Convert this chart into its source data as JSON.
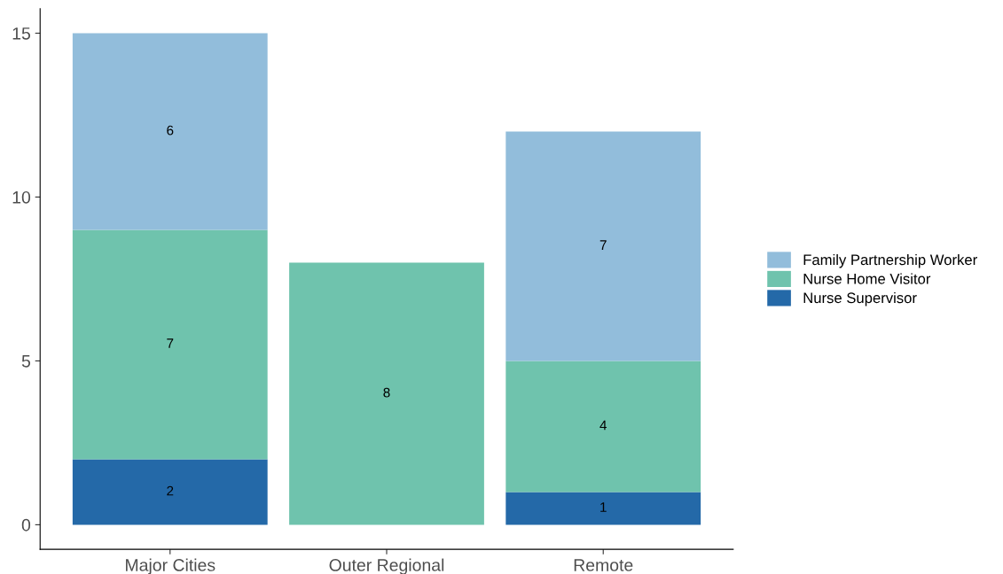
{
  "chart_data": {
    "type": "bar",
    "stacked": true,
    "categories": [
      "Major Cities",
      "Outer Regional",
      "Remote"
    ],
    "series": [
      {
        "name": "Nurse Supervisor",
        "color": "#2469a8",
        "values": [
          2,
          null,
          1
        ]
      },
      {
        "name": "Nurse Home Visitor",
        "color": "#6fc3ad",
        "values": [
          7,
          8,
          4
        ]
      },
      {
        "name": "Family Partnership Worker",
        "color": "#92bddb",
        "values": [
          6,
          null,
          7
        ]
      }
    ],
    "ylim": [
      -0.75,
      15.75
    ],
    "yticks": [
      0,
      5,
      10,
      15
    ],
    "data_labels": true,
    "legend": "right",
    "grid": false
  }
}
